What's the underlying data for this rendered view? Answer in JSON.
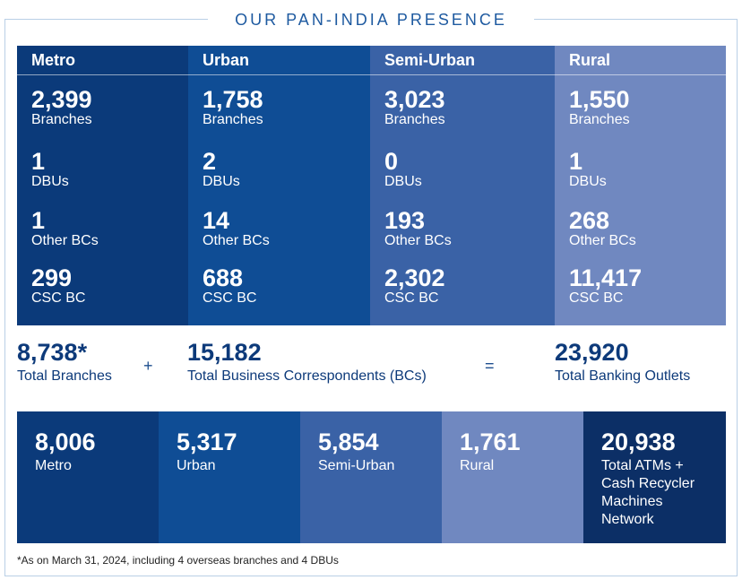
{
  "title": "OUR PAN-INDIA PRESENCE",
  "columns": [
    {
      "header": "Metro",
      "stats": [
        {
          "value": "2,399",
          "label": "Branches"
        },
        {
          "value": "1",
          "label": "DBUs"
        },
        {
          "value": "1",
          "label": "Other BCs"
        },
        {
          "value": "299",
          "label": "CSC BC"
        }
      ]
    },
    {
      "header": "Urban",
      "stats": [
        {
          "value": "1,758",
          "label": "Branches"
        },
        {
          "value": "2",
          "label": "DBUs"
        },
        {
          "value": "14",
          "label": "Other BCs"
        },
        {
          "value": "688",
          "label": "CSC BC"
        }
      ]
    },
    {
      "header": "Semi-Urban",
      "stats": [
        {
          "value": "3,023",
          "label": "Branches"
        },
        {
          "value": "0",
          "label": "DBUs"
        },
        {
          "value": "193",
          "label": "Other BCs"
        },
        {
          "value": "2,302",
          "label": "CSC BC"
        }
      ]
    },
    {
      "header": "Rural",
      "stats": [
        {
          "value": "1,550",
          "label": "Branches"
        },
        {
          "value": "1",
          "label": "DBUs"
        },
        {
          "value": "268",
          "label": "Other BCs"
        },
        {
          "value": "11,417",
          "label": "CSC BC"
        }
      ]
    }
  ],
  "totals": {
    "branches": {
      "value": "8,738*",
      "label": "Total Branches"
    },
    "plus": "+",
    "bcs": {
      "value": "15,182",
      "label": "Total Business Correspondents (BCs)"
    },
    "equals": "=",
    "outlets": {
      "value": "23,920",
      "label": "Total Banking Outlets"
    }
  },
  "atms": [
    {
      "value": "8,006",
      "label": "Metro"
    },
    {
      "value": "5,317",
      "label": "Urban"
    },
    {
      "value": "5,854",
      "label": "Semi-Urban"
    },
    {
      "value": "1,761",
      "label": "Rural"
    },
    {
      "value": "20,938",
      "label": "Total ATMs + Cash Recycler Machines Network"
    }
  ],
  "footnote": "*As on March 31, 2024, including 4 overseas branches and 4 DBUs",
  "colors": {
    "metro": "#0b3a7a",
    "urban": "#0f4d95",
    "semi_urban": "#3a62a6",
    "rural": "#7088c0",
    "total": "#0c2f66",
    "accent_text": "#0d3a7a",
    "frame": "#b9cfe6"
  }
}
